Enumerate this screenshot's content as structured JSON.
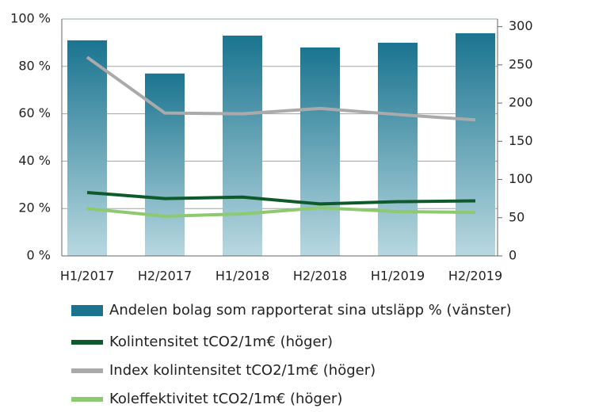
{
  "chart_data": {
    "type": "bar_line",
    "categories": [
      "H1/2017",
      "H2/2017",
      "H1/2018",
      "H2/2018",
      "H1/2019",
      "H2/2019"
    ],
    "series": [
      {
        "name": "Andelen bolag som rapporterat sina utsläpp % (vänster)",
        "type": "bar",
        "color": "#1a7490",
        "values": [
          91,
          77,
          93,
          88,
          90,
          94
        ]
      },
      {
        "name": "Kolintensitet tCO2/1m€ (höger)",
        "type": "line",
        "axis": "y2",
        "color": "#0f5a2a",
        "values": [
          83,
          75,
          77,
          68,
          71,
          72
        ]
      },
      {
        "name": "Index kolintensitet tCO2/1m€ (höger)",
        "type": "line",
        "axis": "y2",
        "color": "#aaaaaa",
        "values": [
          260,
          187,
          186,
          193,
          185,
          178
        ]
      },
      {
        "name": "Koleffektivitet tCO2/1m€ (höger)",
        "type": "line",
        "axis": "y2",
        "color": "#8dc96e",
        "values": [
          62,
          52,
          55,
          63,
          58,
          57
        ]
      }
    ],
    "ylim": [
      0,
      100
    ],
    "yticks": [
      {
        "value": 0,
        "label": "0 %"
      },
      {
        "value": 20,
        "label": "20 %"
      },
      {
        "value": 40,
        "label": "40 %"
      },
      {
        "value": 60,
        "label": "60 %"
      },
      {
        "value": 80,
        "label": "80 %"
      },
      {
        "value": 100,
        "label": "100 %"
      }
    ],
    "y2lim": [
      0,
      310
    ],
    "y2ticks": [
      0,
      50,
      100,
      150,
      200,
      250,
      300
    ],
    "grid": true
  }
}
